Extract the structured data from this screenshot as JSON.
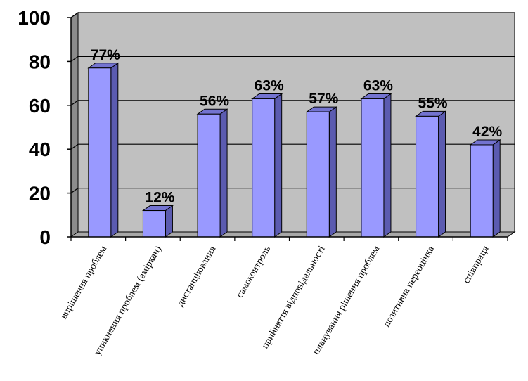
{
  "chart_data": {
    "type": "bar",
    "categories": [
      "вирішення проблем",
      "уникнення проблем (аміркан)",
      "дистанціювання",
      "самоконтроль",
      "прийняття відповідальності",
      "планування рішення проблем",
      "позитивна переоцінка",
      "співпраця"
    ],
    "values": [
      77,
      12,
      56,
      63,
      57,
      63,
      55,
      42
    ],
    "data_labels": [
      "77%",
      "12%",
      "56%",
      "63%",
      "57%",
      "63%",
      "55%",
      "42%"
    ],
    "y_ticks": [
      "0",
      "20",
      "40",
      "60",
      "80",
      "100"
    ],
    "ylim": [
      0,
      100
    ],
    "grid": true,
    "style": "3d-column",
    "colors": {
      "bar_front": "#9999ff",
      "bar_side": "#5b5bb0",
      "bar_top": "#7373d0",
      "plot_back": "#c0c0c0",
      "plot_floor": "#a8a8a8",
      "plot_wall": "#8c8c8c"
    }
  }
}
